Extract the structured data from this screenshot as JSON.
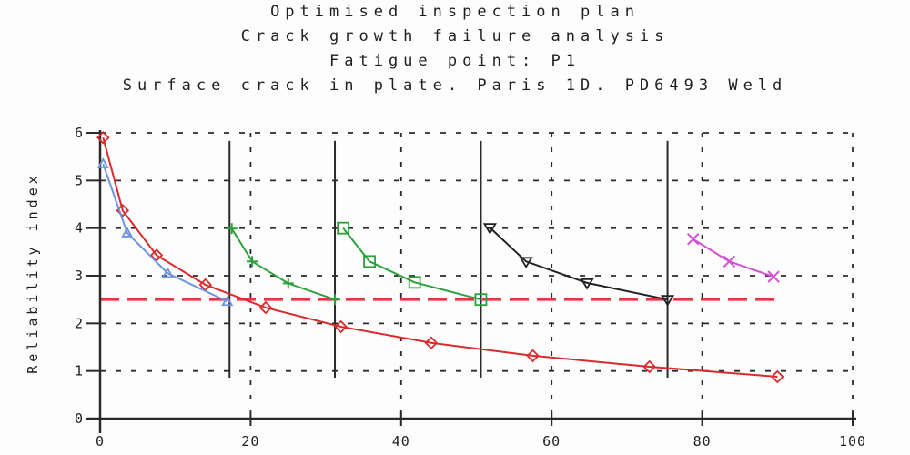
{
  "chart_data": {
    "type": "line",
    "title_lines": [
      "Optimised inspection plan",
      "Crack growth failure analysis",
      "Fatigue point: P1",
      "Surface crack in plate. Paris 1D. PD6493 Weld"
    ],
    "xlabel": "",
    "ylabel": "Reliability index",
    "xlim": [
      0,
      100
    ],
    "ylim": [
      0,
      6
    ],
    "x_ticks": [
      0,
      20,
      40,
      60,
      80,
      100
    ],
    "y_ticks": [
      0,
      1,
      2,
      3,
      4,
      5,
      6
    ],
    "grid": {
      "style": "dashed",
      "color": "#2a2a2a",
      "x_lines": [
        20,
        40,
        60,
        80,
        100
      ],
      "y_lines": [
        1,
        2,
        3,
        4,
        5,
        6
      ]
    },
    "threshold_line": {
      "y": 2.5,
      "x_start": 0,
      "x_end": 90,
      "style": "dashed",
      "color": "#e83545"
    },
    "inspection_time_lines": {
      "x": [
        17.2,
        31.2,
        50.6,
        75.4
      ],
      "y_span": [
        0.86,
        5.83
      ],
      "color": "#2a2a2a"
    },
    "series": [
      {
        "name": "reliability-no-inspection",
        "marker": "diamond",
        "color": "#d92b2b",
        "points": [
          [
            0.4,
            5.9
          ],
          [
            3,
            4.37
          ],
          [
            7.5,
            3.43
          ],
          [
            14,
            2.81
          ],
          [
            22,
            2.33
          ],
          [
            32,
            1.93
          ],
          [
            44,
            1.59
          ],
          [
            57.5,
            1.32
          ],
          [
            73,
            1.09
          ],
          [
            90,
            0.88
          ]
        ]
      },
      {
        "name": "reliability-before-first-inspection",
        "marker": "triangle-up",
        "color": "#6f93dd",
        "points": [
          [
            0.4,
            5.35
          ],
          [
            3.6,
            3.9
          ],
          [
            9,
            3.05
          ],
          [
            16.9,
            2.46
          ]
        ]
      },
      {
        "name": "reliability-after-inspection-1",
        "marker": "plus",
        "color": "#2ca03c",
        "points": [
          [
            17.5,
            3.99
          ],
          [
            20.2,
            3.3
          ],
          [
            25,
            2.84
          ],
          [
            31.2,
            2.5
          ]
        ]
      },
      {
        "name": "reliability-after-inspection-2",
        "marker": "square",
        "color": "#2ca03c",
        "points": [
          [
            32.3,
            4.0
          ],
          [
            35.8,
            3.3
          ],
          [
            41.8,
            2.86
          ],
          [
            50.6,
            2.5
          ]
        ]
      },
      {
        "name": "reliability-after-inspection-3",
        "marker": "triangle-down",
        "color": "#222222",
        "points": [
          [
            51.8,
            4.01
          ],
          [
            56.6,
            3.3
          ],
          [
            64.7,
            2.85
          ],
          [
            75.4,
            2.5
          ]
        ]
      },
      {
        "name": "reliability-after-inspection-4",
        "marker": "x",
        "color": "#d44fd4",
        "points": [
          [
            78.8,
            3.77
          ],
          [
            83.6,
            3.3
          ],
          [
            89.5,
            2.98
          ]
        ]
      }
    ],
    "axis_color": "#2a2a2a"
  }
}
